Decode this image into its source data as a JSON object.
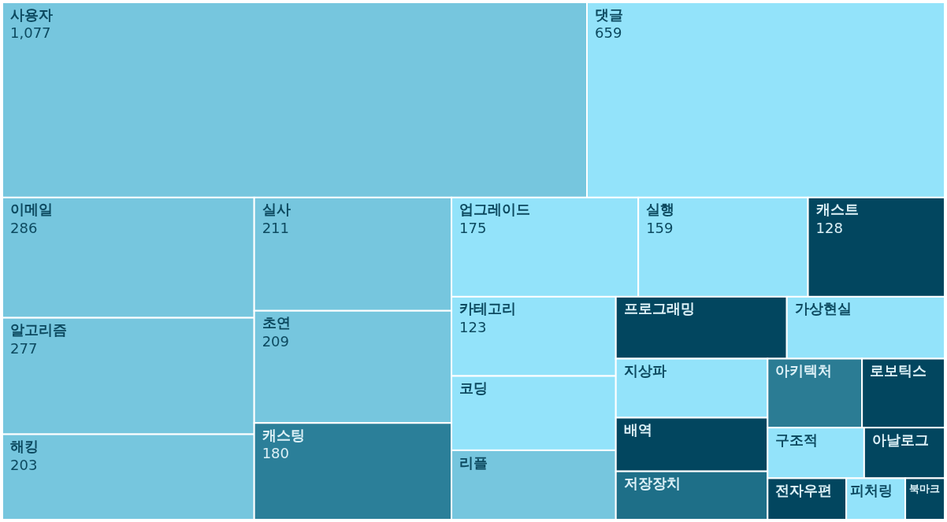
{
  "chart_data": {
    "type": "other",
    "categories": [
      "사용자",
      "댓글",
      "이메일",
      "알고리즘",
      "해킹",
      "실사",
      "초연",
      "캐스팅",
      "업그레이드",
      "실행",
      "캐스트",
      "카테고리",
      "코딩",
      "리플",
      "프로그래밍",
      "가상현실",
      "지상파",
      "배역",
      "저장장치",
      "아키텍처",
      "로보틱스",
      "구조적",
      "아날로그",
      "전자우편",
      "피처링",
      "북마크"
    ],
    "values": [
      1077,
      659,
      286,
      277,
      203,
      211,
      209,
      180,
      175,
      159,
      128,
      123,
      null,
      null,
      null,
      null,
      null,
      null,
      null,
      null,
      null,
      null,
      null,
      null,
      null,
      null
    ],
    "value_labels": [
      "1,077",
      "659",
      "286",
      "277",
      "203",
      "211",
      "209",
      "180",
      "175",
      "159",
      "128",
      "123",
      null,
      null,
      null,
      null,
      null,
      null,
      null,
      null,
      null,
      null,
      null,
      null,
      null,
      null
    ],
    "colors": [
      "#76c6de",
      "#93e3fa",
      "#76c6de",
      "#76c6de",
      "#76c6de",
      "#76c6de",
      "#76c6de",
      "#2b7f99",
      "#93e3fa",
      "#93e3fa",
      "#02465f",
      "#93e3fa",
      "#93e3fa",
      "#76c6de",
      "#02465f",
      "#93e3fa",
      "#93e3fa",
      "#02465f",
      "#1e6f88",
      "#2b7c94",
      "#02465f",
      "#93e3fa",
      "#02465f",
      "#02465f",
      "#93e3fa",
      "#02465f"
    ]
  }
}
